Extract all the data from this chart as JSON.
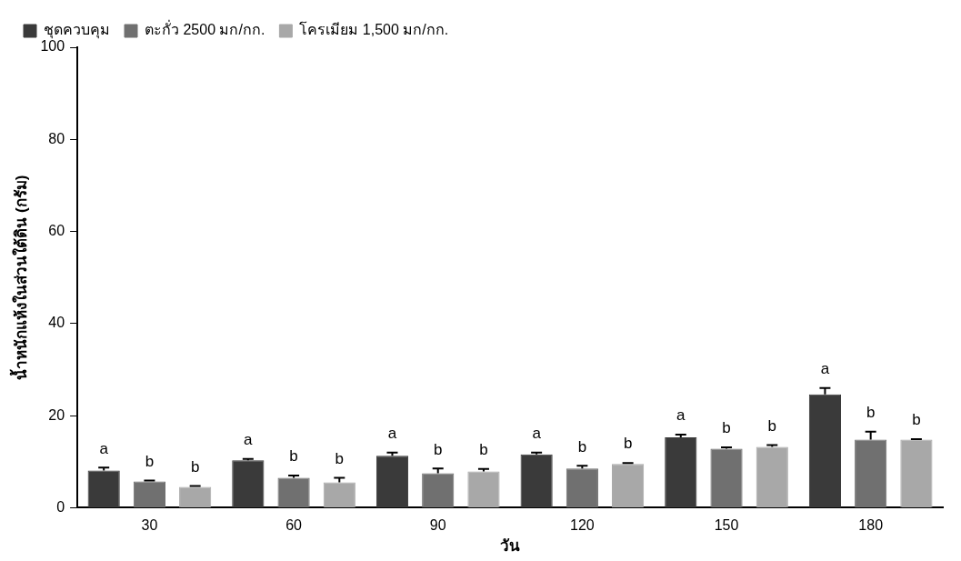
{
  "chart_data": {
    "type": "bar",
    "xlabel": "วัน",
    "ylabel": "น้ำหนักแห้งในส่วนใต้ดิน (กรัม)",
    "categories": [
      "30",
      "60",
      "90",
      "120",
      "150",
      "180"
    ],
    "series": [
      {
        "name": "ชุดควบคุม",
        "color": "#3a3a3a",
        "values": [
          8.1,
          10.3,
          11.3,
          11.6,
          15.3,
          24.6
        ],
        "errors": [
          [
            8.1,
            8.7
          ],
          [
            10.3,
            10.6
          ],
          [
            11.3,
            12.0
          ],
          [
            11.6,
            12.0
          ],
          [
            15.3,
            15.9
          ],
          [
            24.6,
            26.0
          ]
        ],
        "value_labels": [
          "a",
          "a",
          "a",
          "a",
          "a",
          "a"
        ]
      },
      {
        "name": "ตะกั่ว 2500 มก/กก.",
        "color": "#707070",
        "values": [
          5.7,
          6.5,
          7.5,
          8.5,
          12.8,
          14.8
        ],
        "errors": [
          [
            5.7,
            5.9
          ],
          [
            6.5,
            7.0
          ],
          [
            7.5,
            8.5
          ],
          [
            8.5,
            9.1
          ],
          [
            12.8,
            13.1
          ],
          [
            14.8,
            16.5
          ]
        ],
        "value_labels": [
          "b",
          "b",
          "b",
          "b",
          "b",
          "b"
        ]
      },
      {
        "name": "โครเมียม 1,500 มก/กก.",
        "color": "#a8a8a8",
        "values": [
          4.5,
          5.5,
          7.9,
          9.5,
          13.2,
          14.8
        ],
        "errors": [
          [
            4.5,
            4.7
          ],
          [
            5.5,
            6.5
          ],
          [
            7.9,
            8.4
          ],
          [
            9.5,
            9.7
          ],
          [
            13.2,
            13.6
          ],
          [
            14.8,
            14.9
          ]
        ],
        "value_labels": [
          "b",
          "b",
          "b",
          "b",
          "b",
          "b"
        ]
      }
    ],
    "ylim": [
      0,
      100
    ],
    "yticks": [
      0,
      20,
      40,
      60,
      80,
      100
    ],
    "grid": false,
    "legend": "top left"
  }
}
